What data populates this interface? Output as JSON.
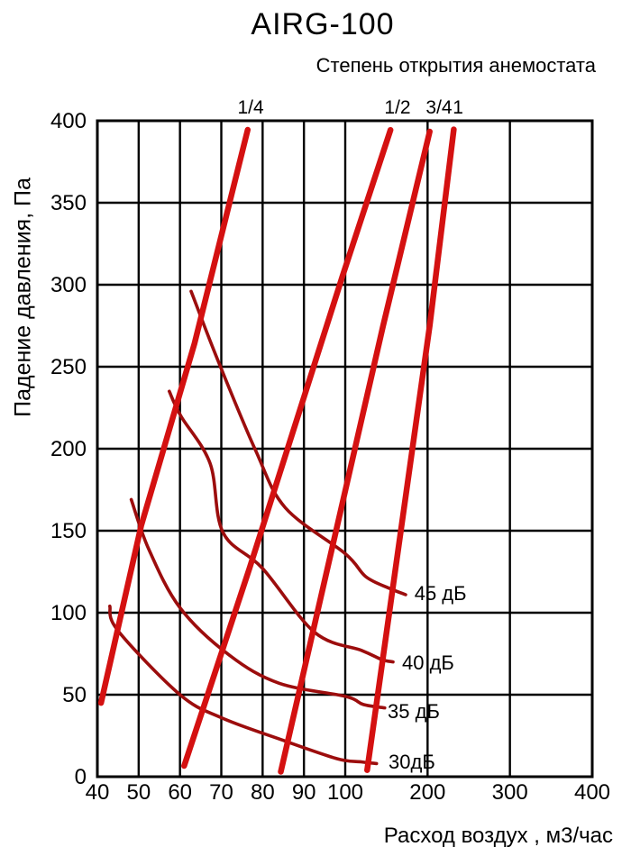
{
  "title": "AIRG-100",
  "subtitle": "Степень открытия анемостата",
  "chart_data": {
    "type": "line",
    "title": "AIRG-100",
    "subtitle": "Степень открытия анемостата",
    "xlabel": "Расход воздух , м3/час",
    "ylabel": "Падение давления, Па",
    "x_scale": "quasi-log: ticks 40-100 evenly spaced, 100-400 evenly spaced at double interval",
    "y_scale": "linear",
    "xlim": [
      40,
      400
    ],
    "ylim": [
      0,
      400
    ],
    "grid": true,
    "x_axis": {
      "ticks": [
        40,
        50,
        60,
        70,
        80,
        90,
        100,
        200,
        300,
        400
      ]
    },
    "y_axis": {
      "ticks": [
        0,
        50,
        100,
        150,
        200,
        250,
        300,
        350,
        400
      ]
    },
    "colors": {
      "grid": "#000000",
      "opening_curve": "#d41111",
      "noise_curve": "#9c0d0d",
      "text": "#000000"
    },
    "opening_curves": [
      {
        "name": "1/4",
        "label_flow": 77.1,
        "points": [
          [
            40.9,
            45
          ],
          [
            50.6,
            153
          ],
          [
            63.5,
            264
          ],
          [
            76.4,
            394.5
          ]
        ]
      },
      {
        "name": "1/2",
        "label_flow": 163.5,
        "points": [
          [
            61,
            6.6
          ],
          [
            76.8,
            127
          ],
          [
            99.3,
            305
          ],
          [
            155,
            394.4
          ]
        ]
      },
      {
        "name": "3/4",
        "label_flow": 213.9,
        "points": [
          [
            84.4,
            3
          ],
          [
            146,
            275
          ],
          [
            202.6,
            393.4
          ]
        ]
      },
      {
        "name": "1",
        "label_flow": 236.9,
        "points": [
          [
            126.6,
            4
          ],
          [
            202.6,
            275
          ],
          [
            231.8,
            394.7
          ]
        ]
      }
    ],
    "noise_curves": [
      {
        "name": "45 дБ",
        "label_at": [
          184,
          107.7
        ],
        "points": [
          [
            62.7,
            296
          ],
          [
            69,
            255
          ],
          [
            78.3,
            199
          ],
          [
            85.5,
            164
          ],
          [
            100,
            136
          ],
          [
            125,
            122
          ],
          [
            153,
            115
          ],
          [
            173.4,
            111
          ]
        ]
      },
      {
        "name": "40 дБ",
        "label_at": [
          169,
          65.4
        ],
        "points": [
          [
            57.4,
            235
          ],
          [
            60.2,
            220
          ],
          [
            67.3,
            191
          ],
          [
            70.4,
            149
          ],
          [
            80,
            127
          ],
          [
            92.6,
            88
          ],
          [
            120,
            77
          ],
          [
            144,
            71.5
          ],
          [
            158,
            70
          ]
        ]
      },
      {
        "name": "35 дБ",
        "label_at": [
          151.5,
          35.7
        ],
        "points": [
          [
            48.2,
            169
          ],
          [
            52.4,
            139
          ],
          [
            60,
            103
          ],
          [
            72,
            74
          ],
          [
            84,
            57
          ],
          [
            100,
            49
          ],
          [
            122,
            44
          ],
          [
            148,
            42
          ]
        ]
      },
      {
        "name": "30дБ",
        "label_at": [
          152.6,
          4.9
        ],
        "points": [
          [
            43,
            104
          ],
          [
            45,
            89
          ],
          [
            60,
            50
          ],
          [
            70,
            36
          ],
          [
            84,
            23
          ],
          [
            98,
            11
          ],
          [
            120,
            9
          ],
          [
            138,
            8
          ]
        ]
      }
    ]
  }
}
